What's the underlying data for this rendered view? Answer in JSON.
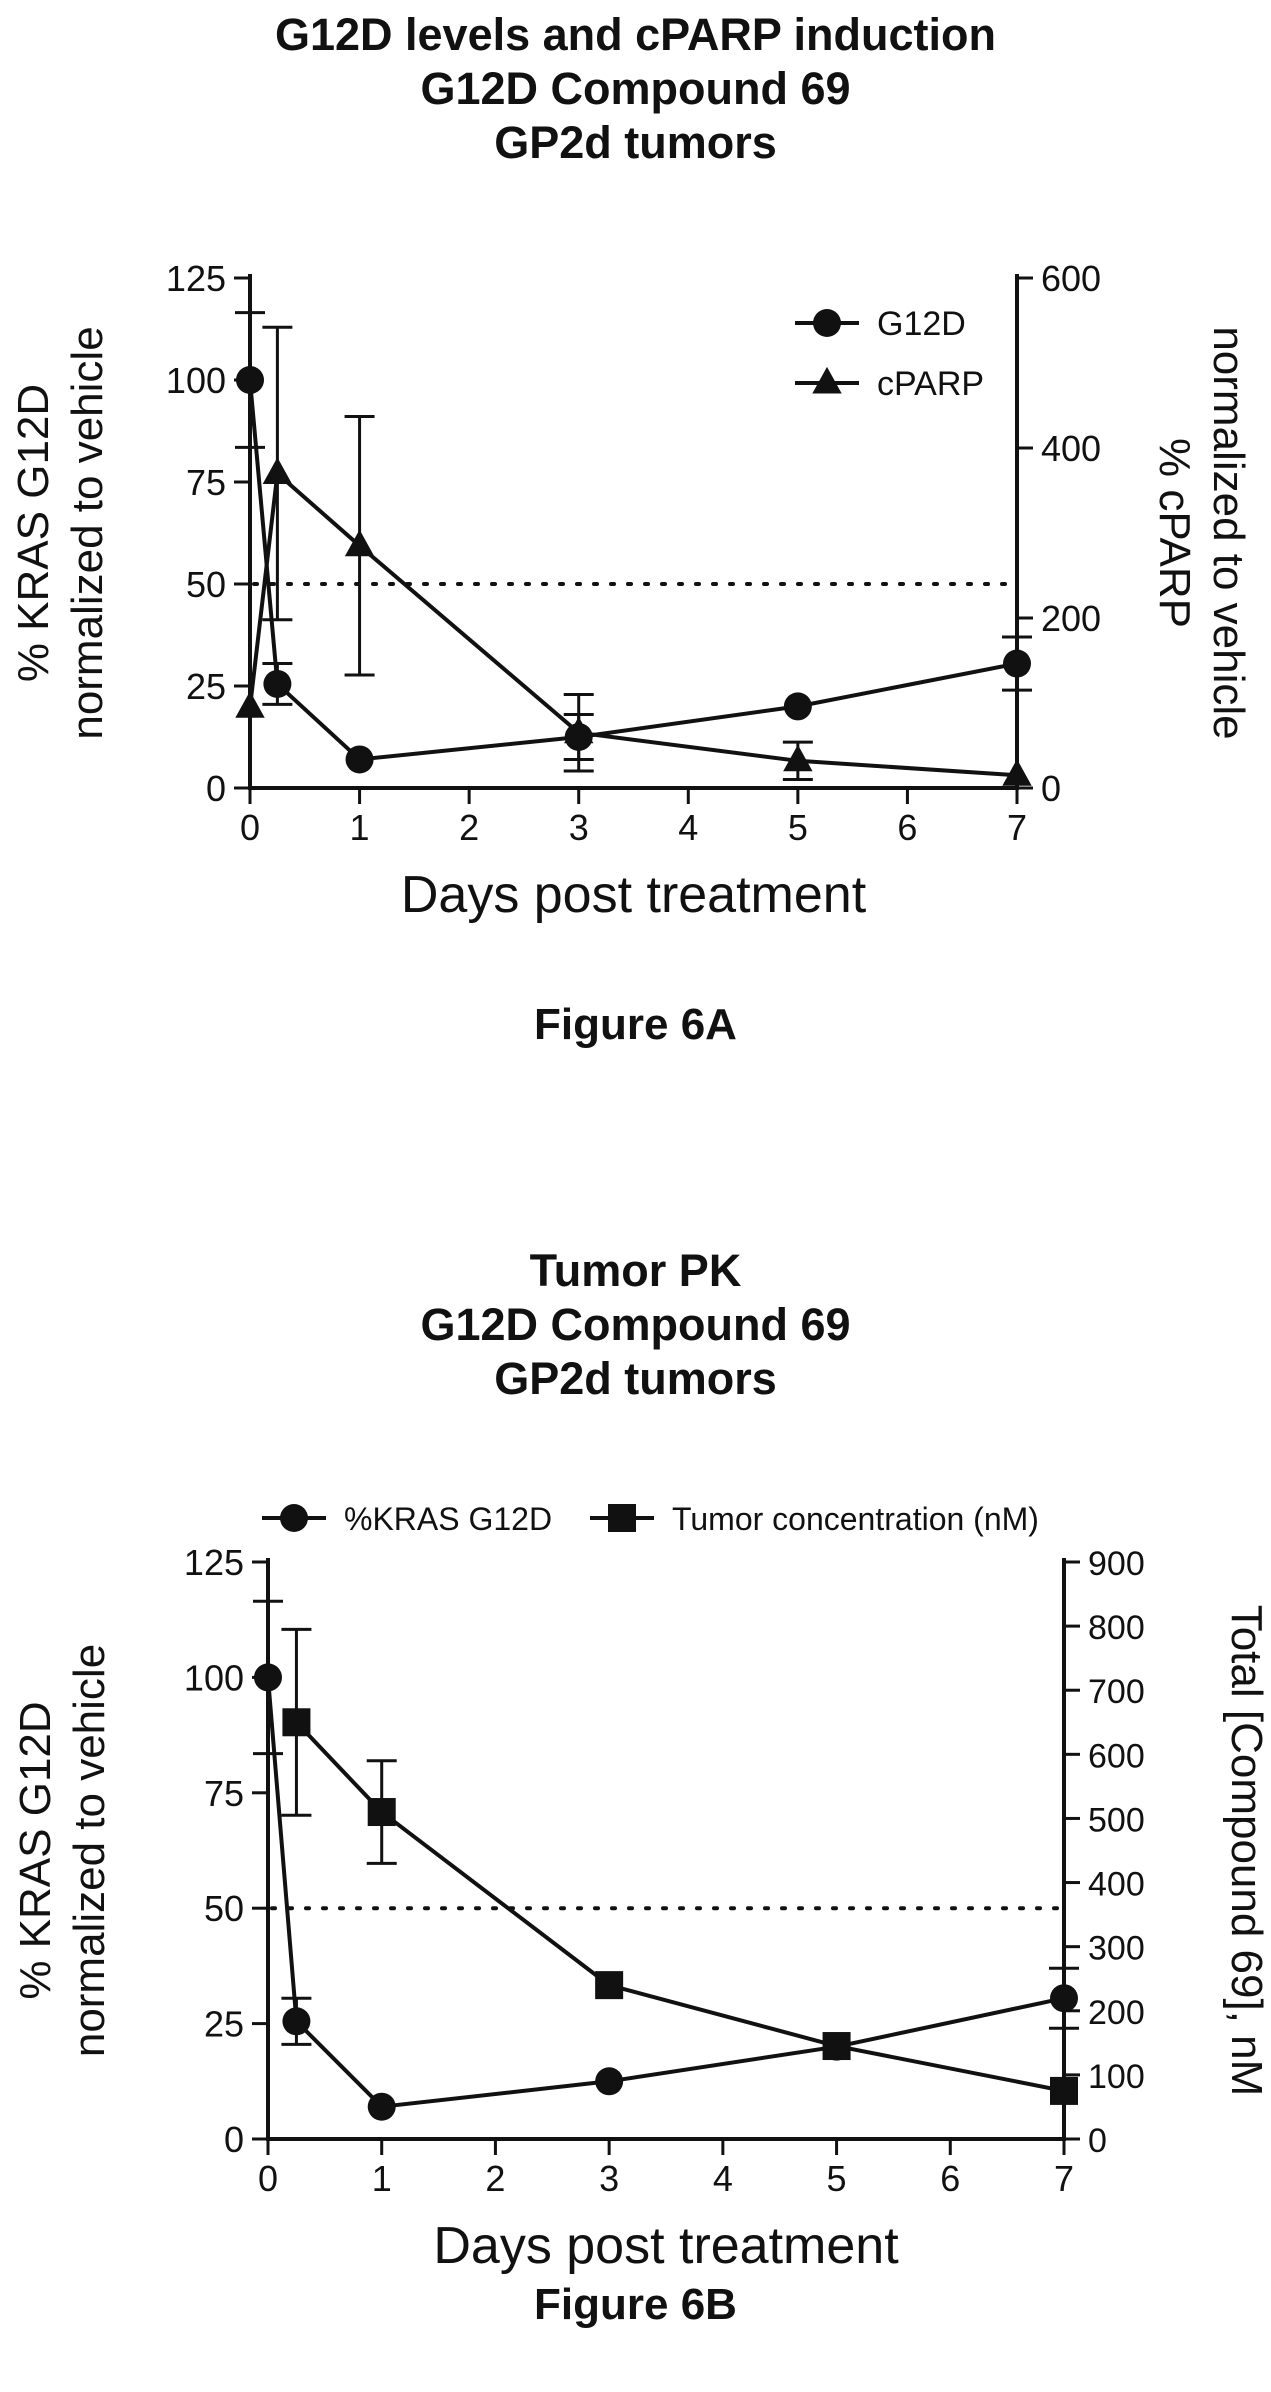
{
  "figures": [
    {
      "caption": "Figure 6A",
      "title_lines": [
        "G12D levels and cPARP induction",
        "G12D Compound 69",
        "GP2d tumors"
      ]
    },
    {
      "caption": "Figure 6B",
      "title_lines": [
        "Tumor PK",
        "G12D Compound 69",
        "GP2d tumors"
      ]
    }
  ],
  "chart_data": [
    {
      "type": "line",
      "title": "G12D levels and cPARP induction\nG12D Compound 69\nGP2d tumors",
      "xlabel": "Days post treatment",
      "ylabel_left": [
        "% KRAS G12D",
        "normalized to vehicle"
      ],
      "ylabel_right": [
        "% cPARP",
        "normalized to vehicle"
      ],
      "xlim": [
        0,
        7
      ],
      "xticks": [
        0,
        1,
        2,
        3,
        4,
        5,
        6,
        7
      ],
      "ylim_left": [
        0,
        125
      ],
      "yticks_left": [
        0,
        25,
        50,
        75,
        100,
        125
      ],
      "ylim_right": [
        0,
        600
      ],
      "yticks_right": [
        0,
        200,
        400,
        600
      ],
      "reference_line": {
        "axis": "left",
        "value": 50,
        "style": "dotted"
      },
      "legend_position": "top-right",
      "series": [
        {
          "name": "G12D",
          "axis": "left",
          "marker": "circle",
          "x": [
            0,
            0.25,
            1,
            3,
            5,
            7
          ],
          "y": [
            100,
            25.5,
            7,
            12.5,
            20,
            30.5
          ],
          "err": [
            16.5,
            5,
            0,
            5.5,
            0,
            6.5
          ]
        },
        {
          "name": "cPARP",
          "axis": "right",
          "marker": "triangle",
          "x": [
            0,
            0.25,
            1,
            3,
            5,
            7
          ],
          "y": [
            95,
            370,
            285,
            65,
            32,
            15
          ],
          "err": [
            0,
            172,
            152,
            45,
            22,
            0
          ]
        }
      ]
    },
    {
      "type": "line",
      "title": "Tumor PK\nG12D Compound 69\nGP2d tumors",
      "xlabel": "Days post treatment",
      "ylabel_left": [
        "% KRAS G12D",
        "normalized to vehicle"
      ],
      "ylabel_right": [
        "Total [Compound 69], nM"
      ],
      "xlim": [
        0,
        7
      ],
      "xticks": [
        0,
        1,
        2,
        3,
        4,
        5,
        6,
        7
      ],
      "ylim_left": [
        0,
        125
      ],
      "yticks_left": [
        0,
        25,
        50,
        75,
        100,
        125
      ],
      "ylim_right": [
        0,
        900
      ],
      "yticks_right": [
        0,
        100,
        200,
        300,
        400,
        500,
        600,
        700,
        800,
        900
      ],
      "reference_line": {
        "axis": "left",
        "value": 50,
        "style": "dotted"
      },
      "legend_position": "top",
      "series": [
        {
          "name": "%KRAS G12D",
          "axis": "left",
          "marker": "circle",
          "x": [
            0,
            0.25,
            1,
            3,
            5,
            7
          ],
          "y": [
            100,
            25.5,
            7,
            12.5,
            20,
            30.5
          ],
          "err": [
            16.5,
            5,
            0,
            0,
            0,
            6.5
          ]
        },
        {
          "name": "Tumor concentration (nM)",
          "axis": "right",
          "marker": "square",
          "x": [
            0.25,
            1,
            3,
            5,
            7
          ],
          "y": [
            650,
            510,
            240,
            145,
            75
          ],
          "err": [
            145,
            80,
            0,
            0,
            0
          ]
        }
      ]
    }
  ]
}
